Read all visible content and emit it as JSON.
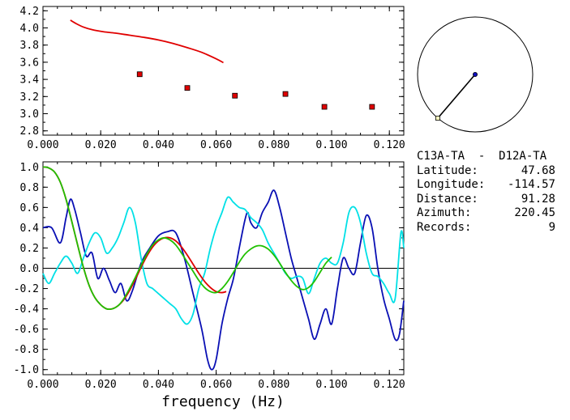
{
  "chart_data": [
    {
      "type": "scatter",
      "x_ticks": [
        "0.000",
        "0.020",
        "0.040",
        "0.060",
        "0.080",
        "0.100",
        "0.120"
      ],
      "y_ticks": [
        "2.8",
        "3.0",
        "3.2",
        "3.4",
        "3.6",
        "3.8",
        "4.0",
        "4.2"
      ],
      "xlim": [
        0.0,
        0.125
      ],
      "ylim": [
        2.75,
        4.25
      ],
      "series": [
        {
          "kind": "line",
          "color": "#e00000",
          "x": [
            0.0095,
            0.0115,
            0.014,
            0.017,
            0.021,
            0.025,
            0.03,
            0.035,
            0.04,
            0.045,
            0.05,
            0.055,
            0.06,
            0.0625
          ],
          "y": [
            4.09,
            4.05,
            4.01,
            3.98,
            3.955,
            3.94,
            3.915,
            3.89,
            3.86,
            3.82,
            3.77,
            3.715,
            3.64,
            3.595
          ]
        },
        {
          "kind": "points",
          "color": "#e00000",
          "x": [
            0.0335,
            0.05,
            0.0665,
            0.084,
            0.0975,
            0.114
          ],
          "y": [
            3.46,
            3.3,
            3.21,
            3.23,
            3.08,
            3.08
          ]
        }
      ]
    },
    {
      "type": "line",
      "x_ticks": [
        "0.000",
        "0.020",
        "0.040",
        "0.060",
        "0.080",
        "0.100",
        "0.120"
      ],
      "y_ticks": [
        "-1.0",
        "-0.8",
        "-0.6",
        "-0.4",
        "-0.2",
        "0.0",
        "0.2",
        "0.4",
        "0.6",
        "0.8",
        "1.0"
      ],
      "xlim": [
        0.0,
        0.125
      ],
      "ylim": [
        -1.05,
        1.05
      ],
      "xlabel": "frequency (Hz)",
      "series": [
        {
          "color": "#0a10b4",
          "x": [
            0.0,
            0.003,
            0.006,
            0.008,
            0.0095,
            0.011,
            0.013,
            0.015,
            0.017,
            0.019,
            0.021,
            0.023,
            0.025,
            0.027,
            0.029,
            0.031,
            0.034,
            0.037,
            0.04,
            0.043,
            0.046,
            0.049,
            0.052,
            0.055,
            0.057,
            0.0585,
            0.06,
            0.062,
            0.064,
            0.066,
            0.068,
            0.07,
            0.071,
            0.072,
            0.074,
            0.076,
            0.078,
            0.08,
            0.082,
            0.084,
            0.086,
            0.088,
            0.09,
            0.092,
            0.094,
            0.096,
            0.098,
            0.1,
            0.102,
            0.104,
            0.106,
            0.108,
            0.11,
            0.112,
            0.114,
            0.116,
            0.118,
            0.12,
            0.122,
            0.1235,
            0.125
          ],
          "y": [
            0.4,
            0.4,
            0.25,
            0.5,
            0.68,
            0.58,
            0.35,
            0.12,
            0.15,
            -0.1,
            0.0,
            -0.12,
            -0.24,
            -0.15,
            -0.32,
            -0.22,
            0.05,
            0.2,
            0.32,
            0.36,
            0.35,
            0.1,
            -0.25,
            -0.6,
            -0.9,
            -1.0,
            -0.9,
            -0.55,
            -0.3,
            -0.1,
            0.2,
            0.48,
            0.55,
            0.45,
            0.4,
            0.55,
            0.65,
            0.77,
            0.6,
            0.35,
            0.1,
            -0.1,
            -0.3,
            -0.5,
            -0.7,
            -0.55,
            -0.4,
            -0.55,
            -0.2,
            0.1,
            0.0,
            -0.05,
            0.25,
            0.52,
            0.4,
            0.0,
            -0.3,
            -0.5,
            -0.7,
            -0.65,
            -0.32
          ]
        },
        {
          "color": "#00e0e6",
          "x": [
            0.0,
            0.002,
            0.004,
            0.006,
            0.008,
            0.01,
            0.012,
            0.014,
            0.016,
            0.018,
            0.02,
            0.022,
            0.024,
            0.026,
            0.028,
            0.03,
            0.032,
            0.034,
            0.036,
            0.038,
            0.04,
            0.042,
            0.044,
            0.046,
            0.048,
            0.05,
            0.052,
            0.054,
            0.056,
            0.058,
            0.06,
            0.062,
            0.064,
            0.066,
            0.068,
            0.07,
            0.072,
            0.074,
            0.076,
            0.078,
            0.08,
            0.082,
            0.084,
            0.086,
            0.088,
            0.09,
            0.092,
            0.094,
            0.096,
            0.098,
            0.1,
            0.102,
            0.104,
            0.106,
            0.108,
            0.11,
            0.112,
            0.114,
            0.116,
            0.118,
            0.12,
            0.122,
            0.124,
            0.125
          ],
          "y": [
            -0.05,
            -0.15,
            -0.05,
            0.05,
            0.12,
            0.05,
            -0.05,
            0.1,
            0.25,
            0.35,
            0.3,
            0.15,
            0.2,
            0.3,
            0.45,
            0.6,
            0.45,
            0.1,
            -0.15,
            -0.2,
            -0.25,
            -0.3,
            -0.35,
            -0.4,
            -0.5,
            -0.55,
            -0.45,
            -0.2,
            -0.05,
            0.2,
            0.4,
            0.55,
            0.7,
            0.65,
            0.6,
            0.58,
            0.5,
            0.45,
            0.38,
            0.25,
            0.15,
            0.05,
            -0.05,
            -0.1,
            -0.08,
            -0.1,
            -0.25,
            -0.1,
            0.05,
            0.1,
            0.05,
            0.05,
            0.25,
            0.55,
            0.6,
            0.45,
            0.15,
            -0.05,
            -0.08,
            -0.15,
            -0.25,
            -0.3,
            0.35,
            0.2
          ]
        },
        {
          "color": "#e00000",
          "x": [
            0.0,
            0.002,
            0.004,
            0.006,
            0.008,
            0.01,
            0.012,
            0.014,
            0.016,
            0.018,
            0.02,
            0.022,
            0.024,
            0.026,
            0.028,
            0.03,
            0.032,
            0.034,
            0.036,
            0.038,
            0.04,
            0.042,
            0.044,
            0.046,
            0.048,
            0.05,
            0.052,
            0.054,
            0.056,
            0.058,
            0.06,
            0.062,
            0.0635
          ],
          "y": [
            1.0,
            0.99,
            0.95,
            0.85,
            0.68,
            0.46,
            0.23,
            0.01,
            -0.17,
            -0.29,
            -0.36,
            -0.4,
            -0.4,
            -0.37,
            -0.31,
            -0.22,
            -0.11,
            0.01,
            0.12,
            0.21,
            0.27,
            0.3,
            0.3,
            0.27,
            0.21,
            0.13,
            0.04,
            -0.05,
            -0.13,
            -0.19,
            -0.23,
            -0.24,
            -0.23
          ]
        },
        {
          "color": "#20c000",
          "x": [
            0.0,
            0.002,
            0.004,
            0.006,
            0.008,
            0.01,
            0.012,
            0.014,
            0.016,
            0.018,
            0.02,
            0.022,
            0.024,
            0.026,
            0.028,
            0.03,
            0.032,
            0.034,
            0.036,
            0.038,
            0.04,
            0.042,
            0.044,
            0.046,
            0.048,
            0.05,
            0.052,
            0.054,
            0.056,
            0.058,
            0.06,
            0.062,
            0.064,
            0.066,
            0.068,
            0.07,
            0.072,
            0.074,
            0.076,
            0.078,
            0.08,
            0.082,
            0.084,
            0.086,
            0.088,
            0.09,
            0.092,
            0.094,
            0.096,
            0.098,
            0.1
          ],
          "y": [
            1.0,
            0.99,
            0.95,
            0.85,
            0.68,
            0.46,
            0.23,
            0.01,
            -0.17,
            -0.29,
            -0.36,
            -0.4,
            -0.4,
            -0.37,
            -0.3,
            -0.2,
            -0.09,
            0.03,
            0.14,
            0.23,
            0.28,
            0.3,
            0.28,
            0.23,
            0.15,
            0.06,
            -0.03,
            -0.12,
            -0.19,
            -0.23,
            -0.24,
            -0.2,
            -0.13,
            -0.04,
            0.06,
            0.14,
            0.19,
            0.22,
            0.22,
            0.19,
            0.13,
            0.05,
            -0.04,
            -0.12,
            -0.18,
            -0.21,
            -0.19,
            -0.13,
            -0.04,
            0.05,
            0.11
          ]
        }
      ]
    }
  ],
  "station_pair": "C13A-TA  -  D12A-TA",
  "info": [
    {
      "label": "Latitude:",
      "value": "47.68"
    },
    {
      "label": "Longitude:",
      "value": "-114.57"
    },
    {
      "label": "Distance:",
      "value": "91.28"
    },
    {
      "label": "Azimuth:",
      "value": "220.45"
    },
    {
      "label": "Records:",
      "value": "9"
    }
  ],
  "azimuth_deg": 220.45,
  "colors": {
    "blue": "#0a10b4",
    "cyan": "#00e0e6",
    "red": "#e00000",
    "green": "#20c000",
    "marker_fill": "#d40000",
    "end_marker_fill": "#ffffc0"
  }
}
